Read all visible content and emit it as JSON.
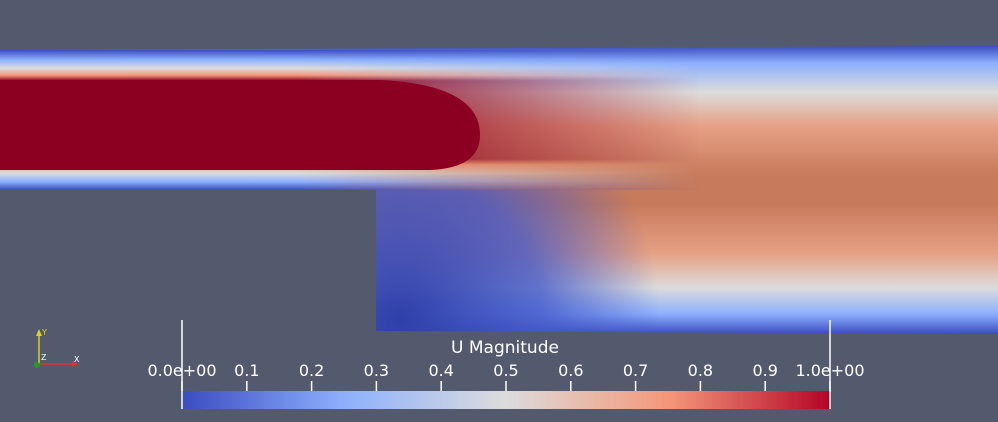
{
  "field": {
    "name": "U Magnitude",
    "range": [
      0,
      1
    ],
    "colormap": [
      "#3b4cc0",
      "#8db0fe",
      "#dddcdc",
      "#f4987a",
      "#b40426",
      "#8b0020"
    ]
  },
  "colorbar": {
    "title": "U Magnitude",
    "ticks": [
      {
        "value": 0.0,
        "label": "0.0e+00"
      },
      {
        "value": 0.1,
        "label": "0.1"
      },
      {
        "value": 0.2,
        "label": "0.2"
      },
      {
        "value": 0.3,
        "label": "0.3"
      },
      {
        "value": 0.4,
        "label": "0.4"
      },
      {
        "value": 0.5,
        "label": "0.5"
      },
      {
        "value": 0.6,
        "label": "0.6"
      },
      {
        "value": 0.7,
        "label": "0.7"
      },
      {
        "value": 0.8,
        "label": "0.8"
      },
      {
        "value": 0.9,
        "label": "0.9"
      },
      {
        "value": 1.0,
        "label": "1.0e+00"
      }
    ]
  },
  "axes": {
    "x_label": "X",
    "y_label": "Y",
    "z_label": "Z",
    "x_color": "#e03030",
    "y_color": "#e0d020",
    "z_color": "#20a020"
  },
  "colors": {
    "background": "#535a6e"
  }
}
